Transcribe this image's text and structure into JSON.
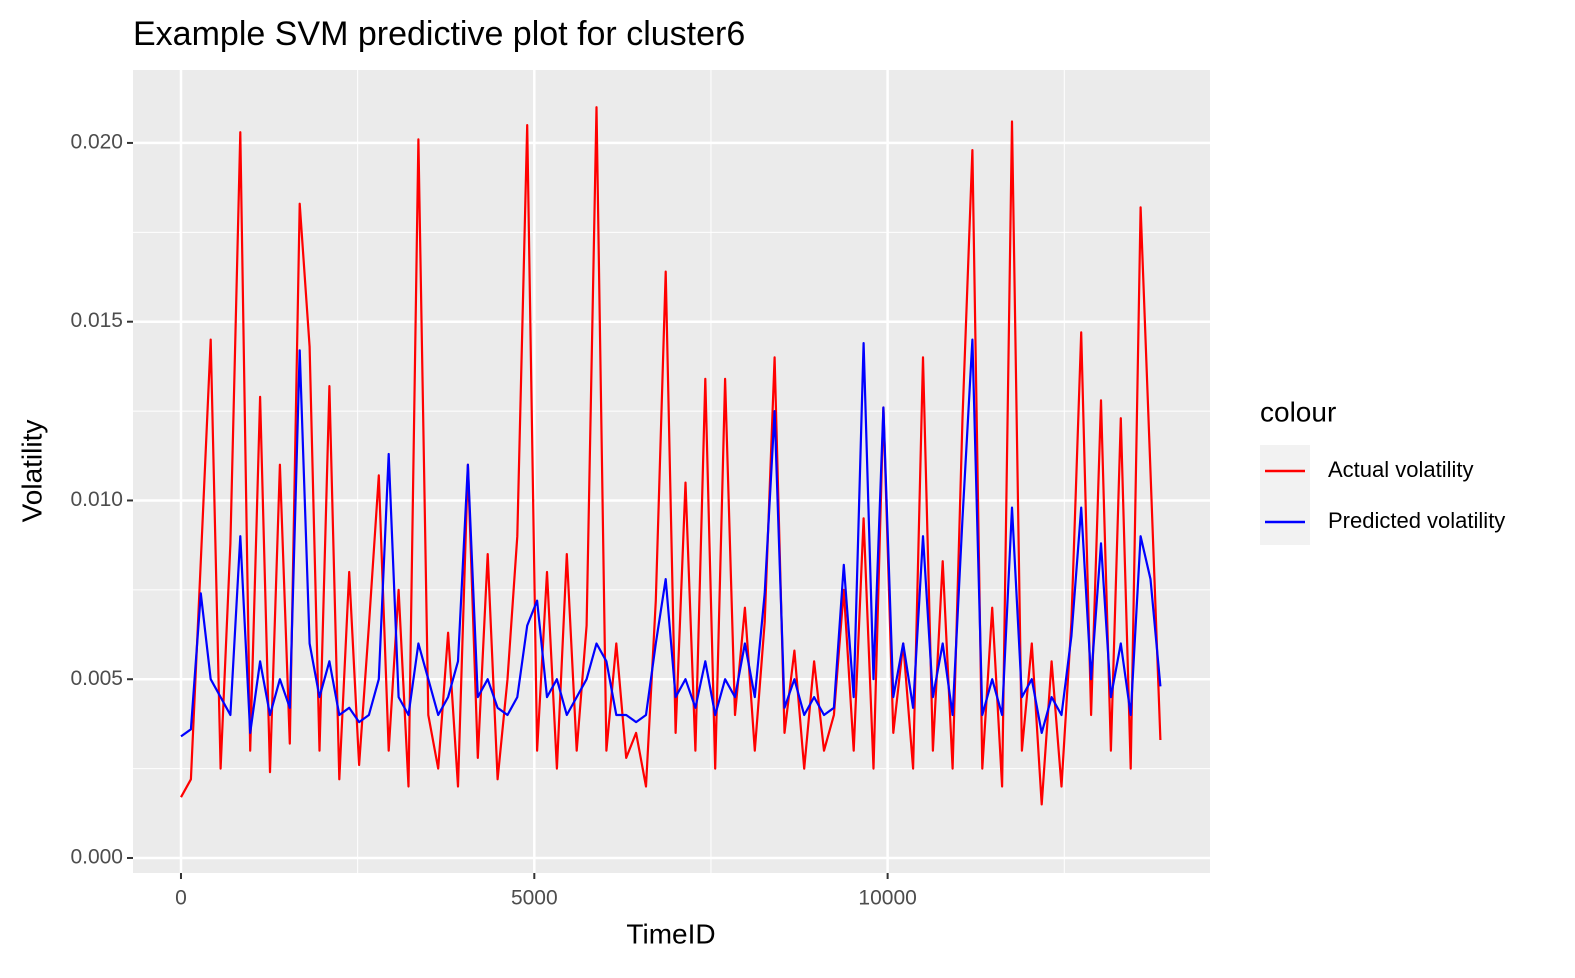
{
  "chart_data": {
    "type": "line",
    "title": "Example SVM predictive plot for cluster6",
    "x_label": "TimeID",
    "y_label": "Volatility",
    "legend_title": "colour",
    "legend": "right",
    "x": [
      0,
      140,
      280,
      420,
      560,
      700,
      840,
      980,
      1120,
      1260,
      1400,
      1540,
      1680,
      1820,
      1960,
      2100,
      2240,
      2380,
      2520,
      2660,
      2800,
      2940,
      3080,
      3220,
      3360,
      3500,
      3640,
      3780,
      3920,
      4060,
      4200,
      4340,
      4480,
      4620,
      4760,
      4900,
      5040,
      5180,
      5320,
      5460,
      5600,
      5740,
      5880,
      6020,
      6160,
      6300,
      6440,
      6580,
      6720,
      6860,
      7000,
      7140,
      7280,
      7420,
      7560,
      7700,
      7840,
      7980,
      8120,
      8260,
      8400,
      8540,
      8680,
      8820,
      8960,
      9100,
      9240,
      9380,
      9520,
      9660,
      9800,
      9940,
      10080,
      10220,
      10360,
      10500,
      10640,
      10780,
      10920,
      11060,
      11200,
      11340,
      11480,
      11620,
      11760,
      11900,
      12040,
      12180,
      12320,
      12460,
      12600,
      12740,
      12880,
      13020,
      13160,
      13300,
      13440,
      13580,
      13720,
      13860
    ],
    "series": [
      {
        "name": "Actual volatility",
        "color": "#ff0000",
        "values": [
          0.0017,
          0.0022,
          0.0083,
          0.0145,
          0.0025,
          0.0088,
          0.0203,
          0.003,
          0.0129,
          0.0024,
          0.011,
          0.0032,
          0.0183,
          0.0143,
          0.003,
          0.0132,
          0.0022,
          0.008,
          0.0026,
          0.0065,
          0.0107,
          0.003,
          0.0075,
          0.002,
          0.0201,
          0.004,
          0.0025,
          0.0063,
          0.002,
          0.011,
          0.0028,
          0.0085,
          0.0022,
          0.005,
          0.009,
          0.0205,
          0.003,
          0.008,
          0.0025,
          0.0085,
          0.003,
          0.0065,
          0.021,
          0.003,
          0.006,
          0.0028,
          0.0035,
          0.002,
          0.0072,
          0.0164,
          0.0035,
          0.0105,
          0.003,
          0.0134,
          0.0025,
          0.0134,
          0.004,
          0.007,
          0.003,
          0.0066,
          0.014,
          0.0035,
          0.0058,
          0.0025,
          0.0055,
          0.003,
          0.004,
          0.0075,
          0.003,
          0.0095,
          0.0025,
          0.0126,
          0.0035,
          0.006,
          0.0025,
          0.014,
          0.003,
          0.0083,
          0.0025,
          0.0123,
          0.0198,
          0.0025,
          0.007,
          0.002,
          0.0206,
          0.003,
          0.006,
          0.0015,
          0.0055,
          0.002,
          0.0066,
          0.0147,
          0.004,
          0.0128,
          0.003,
          0.0123,
          0.0025,
          0.0182,
          0.0108,
          0.0033
        ]
      },
      {
        "name": "Predicted volatility",
        "color": "#0000ff",
        "values": [
          0.0034,
          0.0036,
          0.0074,
          0.005,
          0.0045,
          0.004,
          0.009,
          0.0035,
          0.0055,
          0.004,
          0.005,
          0.0042,
          0.0142,
          0.006,
          0.0045,
          0.0055,
          0.004,
          0.0042,
          0.0038,
          0.004,
          0.005,
          0.0113,
          0.0045,
          0.004,
          0.006,
          0.005,
          0.004,
          0.0045,
          0.0055,
          0.011,
          0.0045,
          0.005,
          0.0042,
          0.004,
          0.0045,
          0.0065,
          0.0072,
          0.0045,
          0.005,
          0.004,
          0.0045,
          0.005,
          0.006,
          0.0055,
          0.004,
          0.004,
          0.0038,
          0.004,
          0.006,
          0.0078,
          0.0045,
          0.005,
          0.0042,
          0.0055,
          0.004,
          0.005,
          0.0045,
          0.006,
          0.0045,
          0.0074,
          0.0125,
          0.0042,
          0.005,
          0.004,
          0.0045,
          0.004,
          0.0042,
          0.0082,
          0.0045,
          0.0144,
          0.005,
          0.0126,
          0.0045,
          0.006,
          0.0042,
          0.009,
          0.0045,
          0.006,
          0.004,
          0.0095,
          0.0145,
          0.004,
          0.005,
          0.004,
          0.0098,
          0.0045,
          0.005,
          0.0035,
          0.0045,
          0.004,
          0.0062,
          0.0098,
          0.005,
          0.0088,
          0.0045,
          0.006,
          0.004,
          0.009,
          0.0078,
          0.0048
        ]
      }
    ],
    "xlim": [
      -679,
      14562
    ],
    "xticks": [
      0,
      5000,
      10000
    ],
    "xminor": [
      2500,
      7500,
      12500
    ],
    "ylim": [
      -0.00042,
      0.02204
    ],
    "yticks": [
      {
        "value": 0,
        "label": "0.000"
      },
      {
        "value": 0.005,
        "label": "0.005"
      },
      {
        "value": 0.01,
        "label": "0.010"
      },
      {
        "value": 0.015,
        "label": "0.015"
      },
      {
        "value": 0.02,
        "label": "0.020"
      }
    ],
    "yminor": [
      0.0025,
      0.0075,
      0.0125,
      0.0175
    ],
    "grid": true
  }
}
